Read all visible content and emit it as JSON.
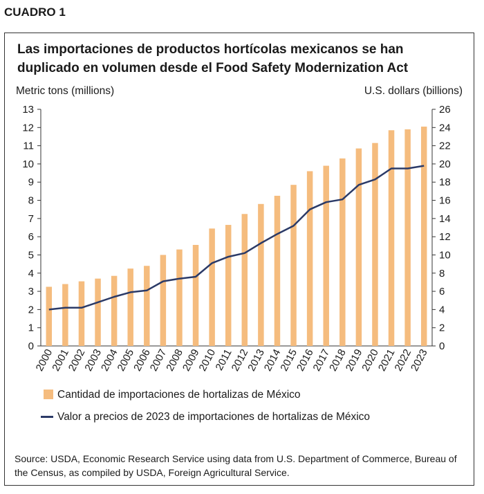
{
  "figure_label": "CUADRO 1",
  "chart_data": {
    "type": "bar",
    "title": "Las importaciones de productos hortícolas mexicanos se han duplicado en volumen desde el Food Safety Modernization Act",
    "ylabel_left": "Metric tons (millions)",
    "ylabel_right": "U.S. dollars (billions)",
    "ylim_left": [
      0,
      13
    ],
    "ylim_right": [
      0,
      26
    ],
    "yticks_left": [
      "0",
      "1",
      "2",
      "3",
      "4",
      "5",
      "6",
      "7",
      "8",
      "9",
      "10",
      "11",
      "12",
      "13"
    ],
    "yticks_right": [
      "0",
      "2",
      "4",
      "6",
      "8",
      "10",
      "12",
      "14",
      "16",
      "18",
      "20",
      "22",
      "24",
      "26"
    ],
    "categories": [
      "2000",
      "2001",
      "2002",
      "2003",
      "2004",
      "2005",
      "2006",
      "2007",
      "2008",
      "2009",
      "2010",
      "2011",
      "2012",
      "2013",
      "2014",
      "2015",
      "2016",
      "2017",
      "2018",
      "2019",
      "2020",
      "2021",
      "2022",
      "2023"
    ],
    "series": [
      {
        "name": "Cantidad de importaciones de hortalizas de México",
        "kind": "bar",
        "axis": "left",
        "color": "#f5bc7e",
        "values": [
          3.25,
          3.4,
          3.55,
          3.7,
          3.85,
          4.25,
          4.4,
          5.0,
          5.3,
          5.55,
          6.45,
          6.65,
          7.25,
          7.8,
          8.25,
          8.85,
          9.6,
          9.9,
          10.3,
          10.85,
          11.15,
          11.85,
          11.9,
          12.05
        ]
      },
      {
        "name": "Valor a precios de 2023 de importaciones de hortalizas de México",
        "kind": "line",
        "axis": "right",
        "color": "#2b3a67",
        "values": [
          4.0,
          4.2,
          4.2,
          4.8,
          5.4,
          5.9,
          6.1,
          7.1,
          7.4,
          7.6,
          9.1,
          9.8,
          10.2,
          11.3,
          12.3,
          13.2,
          15.0,
          15.8,
          16.1,
          17.7,
          18.3,
          19.5,
          19.5,
          19.8
        ]
      }
    ],
    "grid": false,
    "legend_position": "bottom"
  },
  "source": "Source: USDA, Economic Research Service using data from U.S. Department of Commerce, Bureau of the Census, as compiled by USDA, Foreign Agricultural Service."
}
